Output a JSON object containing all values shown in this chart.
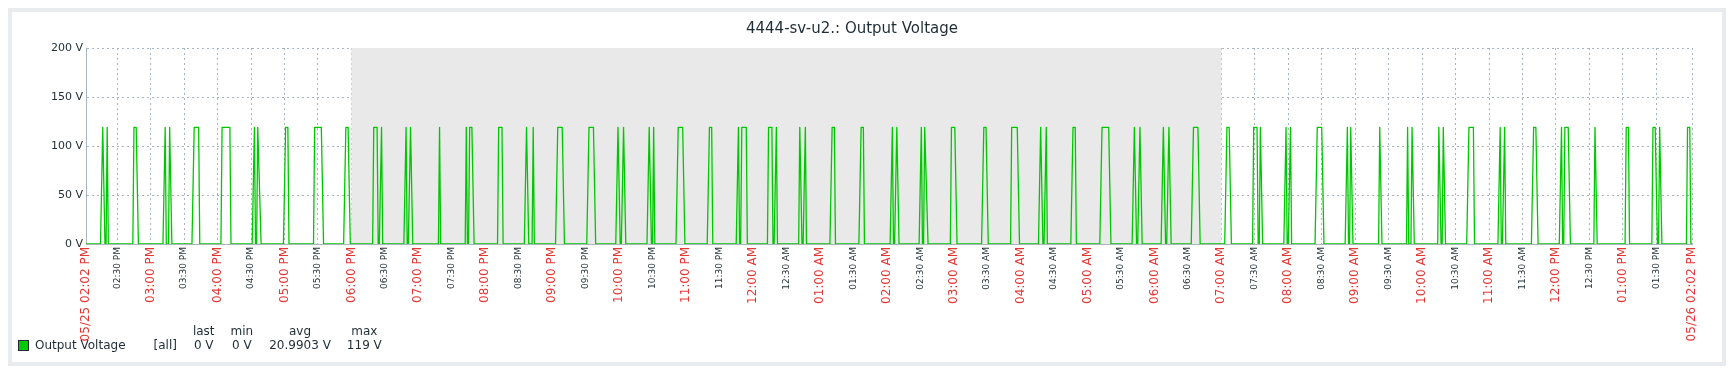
{
  "chart_data": {
    "type": "line",
    "title": "4444-sv-u2.: Output Voltage",
    "xlim": [
      "--05-25T14:02",
      "--05-26T14:02"
    ],
    "ylim": [
      0,
      200
    ],
    "yticks": [
      {
        "value": 0,
        "label": "0 V"
      },
      {
        "value": 50,
        "label": "50 V"
      },
      {
        "value": 100,
        "label": "100 V"
      },
      {
        "value": 150,
        "label": "150 V"
      },
      {
        "value": 200,
        "label": "200 V"
      }
    ],
    "xticks": [
      {
        "value": "--05-25T14:02",
        "label": "05/25 02:02 PM"
      },
      {
        "value": "--05-25T14:30",
        "label": "02:30 PM"
      },
      {
        "value": "--05-25T15:00",
        "label": "03:00 PM"
      },
      {
        "value": "--05-25T15:30",
        "label": "03:30 PM"
      },
      {
        "value": "--05-25T16:00",
        "label": "04:00 PM"
      },
      {
        "value": "--05-25T16:30",
        "label": "04:30 PM"
      },
      {
        "value": "--05-25T17:00",
        "label": "05:00 PM"
      },
      {
        "value": "--05-25T17:30",
        "label": "05:30 PM"
      },
      {
        "value": "--05-25T18:00",
        "label": "06:00 PM"
      },
      {
        "value": "--05-25T18:30",
        "label": "06:30 PM"
      },
      {
        "value": "--05-25T19:00",
        "label": "07:00 PM"
      },
      {
        "value": "--05-25T19:30",
        "label": "07:30 PM"
      },
      {
        "value": "--05-25T20:00",
        "label": "08:00 PM"
      },
      {
        "value": "--05-25T20:30",
        "label": "08:30 PM"
      },
      {
        "value": "--05-25T21:00",
        "label": "09:00 PM"
      },
      {
        "value": "--05-25T21:30",
        "label": "09:30 PM"
      },
      {
        "value": "--05-25T22:00",
        "label": "10:00 PM"
      },
      {
        "value": "--05-25T22:30",
        "label": "10:30 PM"
      },
      {
        "value": "--05-25T23:00",
        "label": "11:00 PM"
      },
      {
        "value": "--05-25T23:30",
        "label": "11:30 PM"
      },
      {
        "value": "--05-26T00:00",
        "label": "12:00 AM"
      },
      {
        "value": "--05-26T00:30",
        "label": "12:30 AM"
      },
      {
        "value": "--05-26T01:00",
        "label": "01:00 AM"
      },
      {
        "value": "--05-26T01:30",
        "label": "01:30 AM"
      },
      {
        "value": "--05-26T02:00",
        "label": "02:00 AM"
      },
      {
        "value": "--05-26T02:30",
        "label": "02:30 AM"
      },
      {
        "value": "--05-26T03:00",
        "label": "03:00 AM"
      },
      {
        "value": "--05-26T03:30",
        "label": "03:30 AM"
      },
      {
        "value": "--05-26T04:00",
        "label": "04:00 AM"
      },
      {
        "value": "--05-26T04:30",
        "label": "04:30 AM"
      },
      {
        "value": "--05-26T05:00",
        "label": "05:00 AM"
      },
      {
        "value": "--05-26T05:30",
        "label": "05:30 AM"
      },
      {
        "value": "--05-26T06:00",
        "label": "06:00 AM"
      },
      {
        "value": "--05-26T06:30",
        "label": "06:30 AM"
      },
      {
        "value": "--05-26T07:00",
        "label": "07:00 AM"
      },
      {
        "value": "--05-26T07:30",
        "label": "07:30 AM"
      },
      {
        "value": "--05-26T08:00",
        "label": "08:00 AM"
      },
      {
        "value": "--05-26T08:30",
        "label": "08:30 AM"
      },
      {
        "value": "--05-26T09:00",
        "label": "09:00 AM"
      },
      {
        "value": "--05-26T09:30",
        "label": "09:30 AM"
      },
      {
        "value": "--05-26T10:00",
        "label": "10:00 AM"
      },
      {
        "value": "--05-26T10:30",
        "label": "10:30 AM"
      },
      {
        "value": "--05-26T11:00",
        "label": "11:00 AM"
      },
      {
        "value": "--05-26T11:30",
        "label": "11:30 AM"
      },
      {
        "value": "--05-26T12:00",
        "label": "12:00 PM"
      },
      {
        "value": "--05-26T12:30",
        "label": "12:30 PM"
      },
      {
        "value": "--05-26T13:00",
        "label": "01:00 PM"
      },
      {
        "value": "--05-26T13:30",
        "label": "01:30 PM"
      },
      {
        "value": "--05-26T14:02",
        "label": "05/26 02:02 PM"
      }
    ],
    "grid": true,
    "legend": "bottom",
    "bands": [
      {
        "axis": "x",
        "from": "--05-25T18:00",
        "to": "--05-26T07:00",
        "color": "#e9e9e9"
      }
    ],
    "annotations": [
      "[all]",
      "last",
      "min",
      "avg",
      "max",
      "0 V",
      "0 V",
      "20.9903 V",
      "119 V"
    ],
    "series": [
      {
        "name": "Output Voltage",
        "color": "#00c800",
        "x": [
          "--05-25T14:02",
          "--05-25T14:15",
          "--05-25T14:17",
          "--05-25T14:19",
          "--05-25T14:20",
          "--05-25T14:21",
          "--05-25T14:22",
          "--05-25T14:44",
          "--05-25T14:45",
          "--05-25T14:47",
          "--05-25T14:49",
          "--05-25T15:11",
          "--05-25T15:13",
          "--05-25T15:14",
          "--05-25T15:16",
          "--05-25T15:17",
          "--05-25T15:19",
          "--05-25T15:37",
          "--05-25T15:39",
          "--05-25T15:43",
          "--05-25T15:44",
          "--05-25T16:03",
          "--05-25T16:04",
          "--05-25T16:11",
          "--05-25T16:12",
          "--05-25T16:31",
          "--05-25T16:33",
          "--05-25T16:34",
          "--05-25T16:35",
          "--05-25T16:36",
          "--05-25T16:39",
          "--05-25T16:59",
          "--05-25T17:01",
          "--05-25T17:03",
          "--05-25T17:04",
          "--05-25T17:26",
          "--05-25T17:27",
          "--05-25T17:33",
          "--05-25T17:35",
          "--05-25T17:53",
          "--05-25T17:55",
          "--05-25T17:57",
          "--05-25T17:59",
          "--05-25T18:19",
          "--05-25T18:20",
          "--05-25T18:23",
          "--05-25T18:24",
          "--05-25T18:25",
          "--05-25T18:27",
          "--05-25T18:28",
          "--05-25T18:47",
          "--05-25T18:49",
          "--05-25T18:50",
          "--05-25T18:51",
          "--05-25T18:53",
          "--05-25T18:55",
          "--05-25T19:18",
          "--05-25T19:19",
          "--05-25T19:20",
          "--05-25T19:42",
          "--05-25T19:43",
          "--05-25T19:44",
          "--05-25T19:45",
          "--05-25T19:46",
          "--05-25T19:48",
          "--05-25T19:50",
          "--05-25T20:11",
          "--05-25T20:12",
          "--05-25T20:15",
          "--05-25T20:16",
          "--05-25T20:35",
          "--05-25T20:37",
          "--05-25T20:39",
          "--05-25T20:42",
          "--05-25T20:43",
          "--05-25T20:44",
          "--05-25T21:03",
          "--05-25T21:05",
          "--05-25T21:09",
          "--05-25T21:11",
          "--05-25T21:31",
          "--05-25T21:33",
          "--05-25T21:37",
          "--05-25T21:39",
          "--05-25T21:57",
          "--05-25T21:59",
          "--05-25T22:01",
          "--05-25T22:02",
          "--05-25T22:04",
          "--05-25T22:06",
          "--05-25T22:25",
          "--05-25T22:27",
          "--05-25T22:29",
          "--05-25T22:30",
          "--05-25T22:31",
          "--05-25T22:32",
          "--05-25T22:51",
          "--05-25T22:53",
          "--05-25T22:57",
          "--05-25T22:59",
          "--05-25T23:19",
          "--05-25T23:21",
          "--05-25T23:23",
          "--05-25T23:24",
          "--05-25T23:45",
          "--05-25T23:47",
          "--05-25T23:48",
          "--05-25T23:49",
          "--05-25T23:50",
          "--05-25T23:54",
          "--05-25T23:55",
          "--05-26T00:13",
          "--05-26T00:14",
          "--05-26T00:17",
          "--05-26T00:18",
          "--05-26T00:19",
          "--05-26T00:21",
          "--05-26T00:22",
          "--05-26T00:41",
          "--05-26T00:42",
          "--05-26T00:44",
          "--05-26T00:45",
          "--05-26T00:47",
          "--05-26T00:48",
          "--05-26T01:09",
          "--05-26T01:11",
          "--05-26T01:13",
          "--05-26T01:14",
          "--05-26T01:35",
          "--05-26T01:37",
          "--05-26T01:39",
          "--05-26T01:40",
          "--05-26T02:03",
          "--05-26T02:05",
          "--05-26T02:06",
          "--05-26T02:07",
          "--05-26T02:09",
          "--05-26T02:11",
          "--05-26T02:29",
          "--05-26T02:31",
          "--05-26T02:32",
          "--05-26T02:33",
          "--05-26T02:34",
          "--05-26T02:37",
          "--05-26T02:57",
          "--05-26T02:58",
          "--05-26T03:01",
          "--05-26T03:03",
          "--05-26T03:25",
          "--05-26T03:27",
          "--05-26T03:29",
          "--05-26T03:31",
          "--05-26T03:51",
          "--05-26T03:52",
          "--05-26T03:57",
          "--05-26T03:59",
          "--05-26T04:16",
          "--05-26T04:18",
          "--05-26T04:20",
          "--05-26T04:21",
          "--05-26T04:23",
          "--05-26T04:24",
          "--05-26T04:45",
          "--05-26T04:47",
          "--05-26T04:49",
          "--05-26T04:50",
          "--05-26T05:11",
          "--05-26T05:13",
          "--05-26T05:19",
          "--05-26T05:21",
          "--05-26T05:40",
          "--05-26T05:42",
          "--05-26T05:44",
          "--05-26T05:45",
          "--05-26T05:47",
          "--05-26T05:49",
          "--05-26T06:06",
          "--05-26T06:08",
          "--05-26T06:10",
          "--05-26T06:11",
          "--05-26T06:13",
          "--05-26T06:15",
          "--05-26T06:33",
          "--05-26T06:35",
          "--05-26T06:39",
          "--05-26T06:41",
          "--05-26T07:03",
          "--05-26T07:05",
          "--05-26T07:07",
          "--05-26T07:09",
          "--05-26T07:28",
          "--05-26T07:29",
          "--05-26T07:32",
          "--05-26T07:33",
          "--05-26T07:34",
          "--05-26T07:35",
          "--05-26T07:37",
          "--05-26T07:56",
          "--05-26T07:58",
          "--05-26T07:59",
          "--05-26T08:00",
          "--05-26T08:02",
          "--05-26T08:03",
          "--05-26T08:24",
          "--05-26T08:26",
          "--05-26T08:30",
          "--05-26T08:32",
          "--05-26T08:51",
          "--05-26T08:53",
          "--05-26T08:54",
          "--05-26T08:55",
          "--05-26T08:56",
          "--05-26T08:58",
          "--05-26T09:21",
          "--05-26T09:22",
          "--05-26T09:24",
          "--05-26T09:46",
          "--05-26T09:47",
          "--05-26T09:48",
          "--05-26T09:50",
          "--05-26T09:51",
          "--05-26T09:53",
          "--05-26T10:14",
          "--05-26T10:15",
          "--05-26T10:17",
          "--05-26T10:18",
          "--05-26T10:19",
          "--05-26T10:21",
          "--05-26T10:40",
          "--05-26T10:42",
          "--05-26T10:46",
          "--05-26T10:47",
          "--05-26T11:08",
          "--05-26T11:10",
          "--05-26T11:11",
          "--05-26T11:12",
          "--05-26T11:14",
          "--05-26T11:15",
          "--05-26T11:38",
          "--05-26T11:40",
          "--05-26T11:42",
          "--05-26T11:44",
          "--05-26T12:03",
          "--05-26T12:05",
          "--05-26T12:06",
          "--05-26T12:07",
          "--05-26T12:08",
          "--05-26T12:11",
          "--05-26T12:13",
          "--05-26T12:34",
          "--05-26T12:35",
          "--05-26T12:37",
          "--05-26T13:02",
          "--05-26T13:03",
          "--05-26T13:05",
          "--05-26T13:06",
          "--05-26T13:26",
          "--05-26T13:27",
          "--05-26T13:29",
          "--05-26T13:31",
          "--05-26T13:32",
          "--05-26T13:33",
          "--05-26T13:35",
          "--05-26T13:57",
          "--05-26T13:58",
          "--05-26T14:00",
          "--05-26T14:01",
          "--05-26T14:02"
        ],
        "values": [
          0,
          0,
          119,
          0,
          0,
          119,
          0,
          0,
          119,
          119,
          0,
          0,
          119,
          0,
          0,
          119,
          0,
          0,
          119,
          119,
          0,
          0,
          119,
          119,
          0,
          0,
          119,
          0,
          0,
          119,
          0,
          0,
          119,
          119,
          0,
          0,
          119,
          119,
          0,
          0,
          119,
          119,
          0,
          0,
          119,
          119,
          0,
          0,
          119,
          0,
          0,
          119,
          0,
          0,
          119,
          0,
          0,
          119,
          0,
          0,
          119,
          0,
          0,
          119,
          119,
          0,
          0,
          119,
          119,
          0,
          0,
          119,
          0,
          0,
          119,
          0,
          0,
          119,
          119,
          0,
          0,
          119,
          119,
          0,
          0,
          119,
          0,
          0,
          119,
          0,
          0,
          119,
          0,
          0,
          119,
          0,
          0,
          119,
          119,
          0,
          0,
          119,
          119,
          0,
          0,
          119,
          0,
          0,
          119,
          119,
          0,
          0,
          119,
          119,
          0,
          0,
          119,
          0,
          0,
          119,
          0,
          0,
          119,
          0,
          0,
          119,
          119,
          0,
          0,
          119,
          119,
          0,
          0,
          119,
          0,
          0,
          119,
          0,
          0,
          119,
          0,
          0,
          119,
          0,
          0,
          119,
          119,
          0,
          0,
          119,
          119,
          0,
          0,
          119,
          119,
          0,
          0,
          119,
          0,
          0,
          119,
          0,
          0,
          119,
          119,
          0,
          0,
          119,
          119,
          0,
          0,
          119,
          0,
          0,
          119,
          0,
          0,
          119,
          0,
          0,
          119,
          0,
          0,
          119,
          119,
          0,
          0,
          119,
          119,
          0,
          0,
          119,
          119,
          0,
          0,
          119,
          0,
          0,
          119,
          0,
          0,
          119,
          0,
          0,
          119,
          119,
          0,
          0,
          119,
          0,
          0,
          119,
          0,
          0,
          119,
          0,
          0,
          119,
          0,
          0,
          119,
          0,
          0,
          119,
          0,
          0,
          119,
          0,
          0,
          119,
          119,
          0,
          0,
          119,
          0,
          0,
          119,
          0,
          0,
          119,
          119,
          0,
          0,
          119,
          0,
          0,
          119,
          119,
          0,
          0,
          119,
          0,
          0,
          119,
          119,
          0,
          0,
          119,
          119,
          0,
          0,
          119,
          0,
          0,
          119,
          119,
          0,
          0
        ]
      }
    ]
  }
}
